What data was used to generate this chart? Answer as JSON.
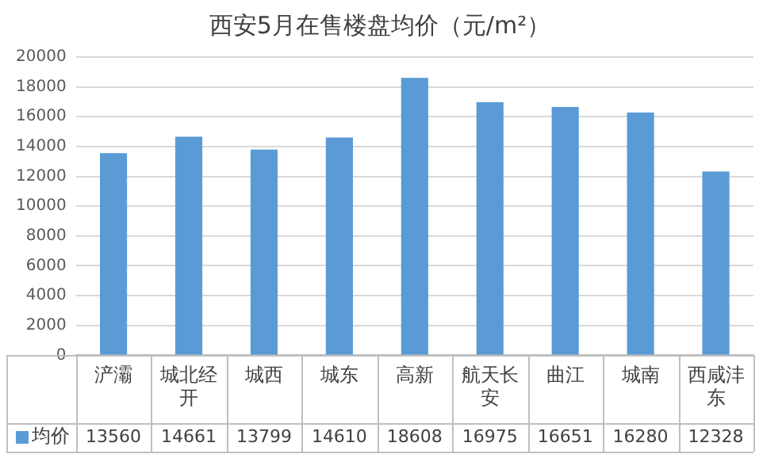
{
  "chart_data": {
    "type": "bar",
    "title": "西安5月在售楼盘均价（元/m²）",
    "categories": [
      "浐灞",
      "城北经开",
      "城西",
      "城东",
      "高新",
      "航天长安",
      "曲江",
      "城南",
      "西咸沣东"
    ],
    "series": [
      {
        "name": "均价",
        "color": "#5b9bd5",
        "values": [
          13560,
          14661,
          13799,
          14610,
          18608,
          16975,
          16651,
          16280,
          12328
        ]
      }
    ],
    "ylim": [
      0,
      20000
    ],
    "yticks": [
      0,
      2000,
      4000,
      6000,
      8000,
      10000,
      12000,
      14000,
      16000,
      18000,
      20000
    ],
    "grid": "y",
    "legend": "bottom",
    "data_labels": true
  }
}
